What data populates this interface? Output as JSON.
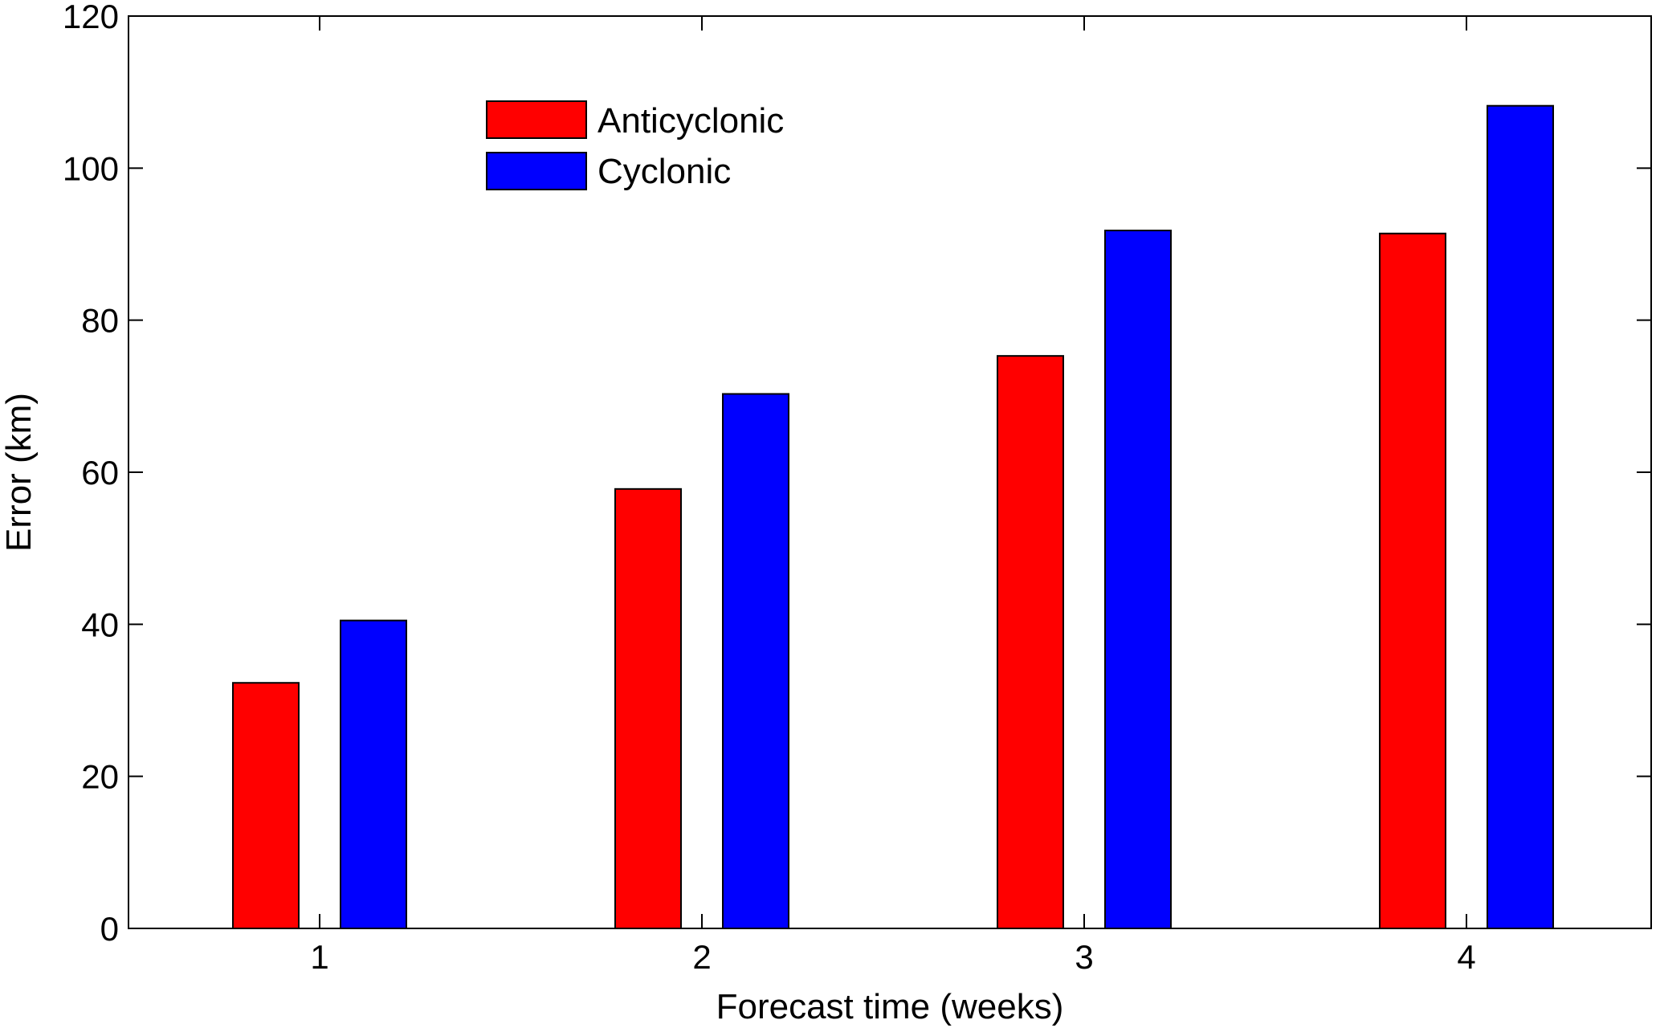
{
  "chart_data": {
    "type": "bar",
    "title": "",
    "xlabel": "Forecast time (weeks)",
    "ylabel": "Error (km)",
    "categories": [
      "1",
      "2",
      "3",
      "4"
    ],
    "ylim": [
      0,
      120
    ],
    "yticks": [
      0,
      20,
      40,
      60,
      80,
      100,
      120
    ],
    "ytick_labels": [
      "0",
      "20",
      "40",
      "60",
      "80",
      "100",
      "120"
    ],
    "grid": false,
    "legend_position": "top-left",
    "series": [
      {
        "name": "Anticyclonic",
        "color": "#ff0000",
        "values": [
          32.3,
          57.8,
          75.3,
          91.4
        ]
      },
      {
        "name": "Cyclonic",
        "color": "#0000ff",
        "values": [
          40.5,
          70.3,
          91.8,
          108.2
        ]
      }
    ]
  }
}
